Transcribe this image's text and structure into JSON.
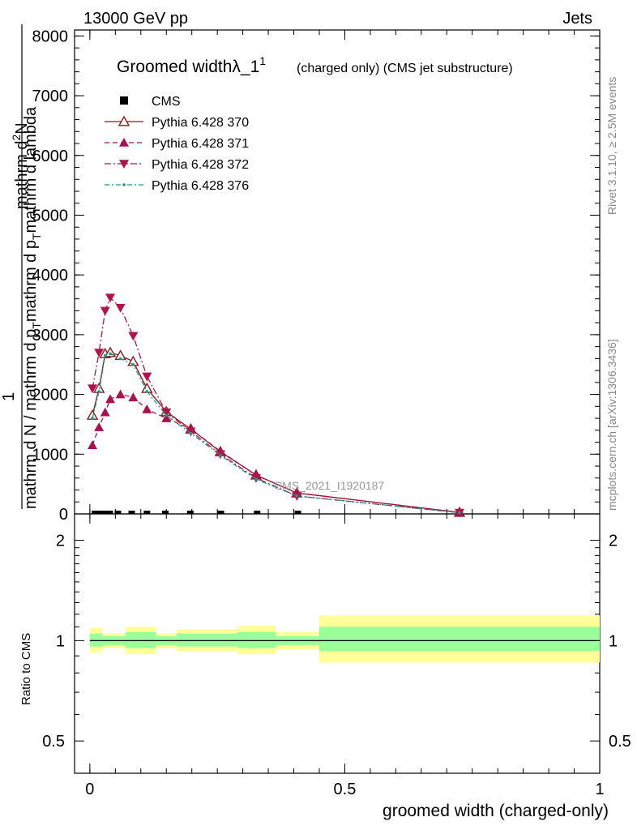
{
  "header": {
    "left_title": "13000 GeV pp",
    "right_title": "Jets"
  },
  "side_labels": {
    "rivet": "Rivet 3.1.10, ≥ 2.5M events",
    "mcplots": "mcplots.cern.ch [arXiv:1306.3436]"
  },
  "watermark": "CMS_2021_I1920187",
  "chart_data": {
    "type": "scatter",
    "title": "Groomed widthλ_1",
    "title_sup": "1",
    "subtitle": "(charged only) (CMS jet substructure)",
    "ylabel_top": "mathrm d",
    "ylabel_top_sup": "2",
    "ylabel_top_tail": "N",
    "ylabel_bottom": "mathrm d N / mathrm d p",
    "ylabel_bottom_sub": "T",
    "ylabel_bottom_tail": "mathrm d p",
    "ylabel_bottom_tail_sub": "T",
    "ylabel_bottom_end": "mathrm d lambda",
    "ylabel_one": "1",
    "xlabel": "groomed width (charged-only)",
    "ratio_ylabel": "Ratio to CMS",
    "xlim": [
      -0.03,
      1.0
    ],
    "ylim": [
      0,
      8100
    ],
    "ratio_ylim_log": [
      0.4,
      2.4
    ],
    "x_ticks": [
      0,
      0.5,
      1
    ],
    "x_tick_labels": [
      "0",
      "0.5",
      "1"
    ],
    "y_ticks": [
      0,
      1000,
      2000,
      3000,
      4000,
      5000,
      6000,
      7000,
      8000
    ],
    "y_tick_labels": [
      "0",
      "1000",
      "2000",
      "3000",
      "4000",
      "5000",
      "6000",
      "7000",
      "8000"
    ],
    "ratio_ticks": [
      0.5,
      1,
      2
    ],
    "ratio_tick_labels": [
      "0.5",
      "1",
      "2"
    ],
    "legend": [
      {
        "name": "CMS",
        "style": "data"
      },
      {
        "name": "Pythia 6.428 370",
        "style": "open-triangle"
      },
      {
        "name": "Pythia 6.428 371",
        "style": "filled-triangle"
      },
      {
        "name": "Pythia 6.428 372",
        "style": "down-triangle"
      },
      {
        "name": "Pythia 6.428 376",
        "style": "dot"
      }
    ],
    "colors": {
      "s370": "#8b1a1a",
      "s371": "#a8124e",
      "s372": "#b0154a",
      "s376": "#199a8a",
      "band_inner": "#99ff99",
      "band_outer": "#ffff99"
    },
    "data_points": {
      "x": [
        0.01,
        0.018,
        0.027,
        0.039,
        0.055,
        0.082,
        0.112,
        0.148,
        0.197,
        0.257,
        0.328,
        0.408
      ],
      "y": [
        0,
        0,
        0,
        0,
        0,
        0,
        0,
        0,
        0,
        0,
        0,
        0
      ]
    },
    "ratio_bins": [
      {
        "x0": 0.0,
        "x1": 0.025,
        "inner": [
          0.96,
          1.05
        ],
        "outer": [
          0.92,
          1.09
        ]
      },
      {
        "x0": 0.025,
        "x1": 0.07,
        "inner": [
          0.97,
          1.03
        ],
        "outer": [
          0.95,
          1.05
        ]
      },
      {
        "x0": 0.07,
        "x1": 0.13,
        "inner": [
          0.95,
          1.06
        ],
        "outer": [
          0.91,
          1.1
        ]
      },
      {
        "x0": 0.13,
        "x1": 0.17,
        "inner": [
          0.97,
          1.03
        ],
        "outer": [
          0.95,
          1.05
        ]
      },
      {
        "x0": 0.17,
        "x1": 0.29,
        "inner": [
          0.96,
          1.05
        ],
        "outer": [
          0.93,
          1.08
        ]
      },
      {
        "x0": 0.29,
        "x1": 0.365,
        "inner": [
          0.95,
          1.06
        ],
        "outer": [
          0.91,
          1.11
        ]
      },
      {
        "x0": 0.365,
        "x1": 0.45,
        "inner": [
          0.97,
          1.03
        ],
        "outer": [
          0.94,
          1.06
        ]
      },
      {
        "x0": 0.45,
        "x1": 1.0,
        "inner": [
          0.93,
          1.1
        ],
        "outer": [
          0.86,
          1.19
        ]
      }
    ],
    "series": [
      {
        "key": "s370",
        "name": "Pythia 6.428 370",
        "x": [
          0.005,
          0.018,
          0.03,
          0.04,
          0.06,
          0.085,
          0.112,
          0.15,
          0.198,
          0.256,
          0.326,
          0.406,
          0.725
        ],
        "y": [
          1650,
          2100,
          2680,
          2700,
          2650,
          2550,
          2100,
          1710,
          1420,
          1040,
          650,
          350,
          25
        ]
      },
      {
        "key": "s371",
        "name": "Pythia 6.428 371",
        "x": [
          0.005,
          0.018,
          0.03,
          0.04,
          0.06,
          0.085,
          0.112,
          0.15,
          0.198,
          0.256,
          0.326,
          0.406,
          0.725
        ],
        "y": [
          1150,
          1450,
          1700,
          1920,
          2000,
          1950,
          1750,
          1600,
          1420,
          1050,
          650,
          350,
          25
        ]
      },
      {
        "key": "s372",
        "name": "Pythia 6.428 372",
        "x": [
          0.005,
          0.018,
          0.03,
          0.04,
          0.06,
          0.085,
          0.112,
          0.15,
          0.198,
          0.256,
          0.326,
          0.406,
          0.725
        ],
        "y": [
          2100,
          2700,
          3400,
          3620,
          3450,
          2980,
          2300,
          1700,
          1380,
          1000,
          600,
          300,
          20
        ]
      },
      {
        "key": "s376",
        "name": "Pythia 6.428 376",
        "x": [
          0.005,
          0.018,
          0.03,
          0.04,
          0.06,
          0.085,
          0.112,
          0.15,
          0.198,
          0.256,
          0.326,
          0.406,
          0.725
        ],
        "y": [
          1600,
          2050,
          2650,
          2680,
          2600,
          2500,
          2050,
          1650,
          1350,
          980,
          580,
          300,
          20
        ]
      }
    ]
  }
}
